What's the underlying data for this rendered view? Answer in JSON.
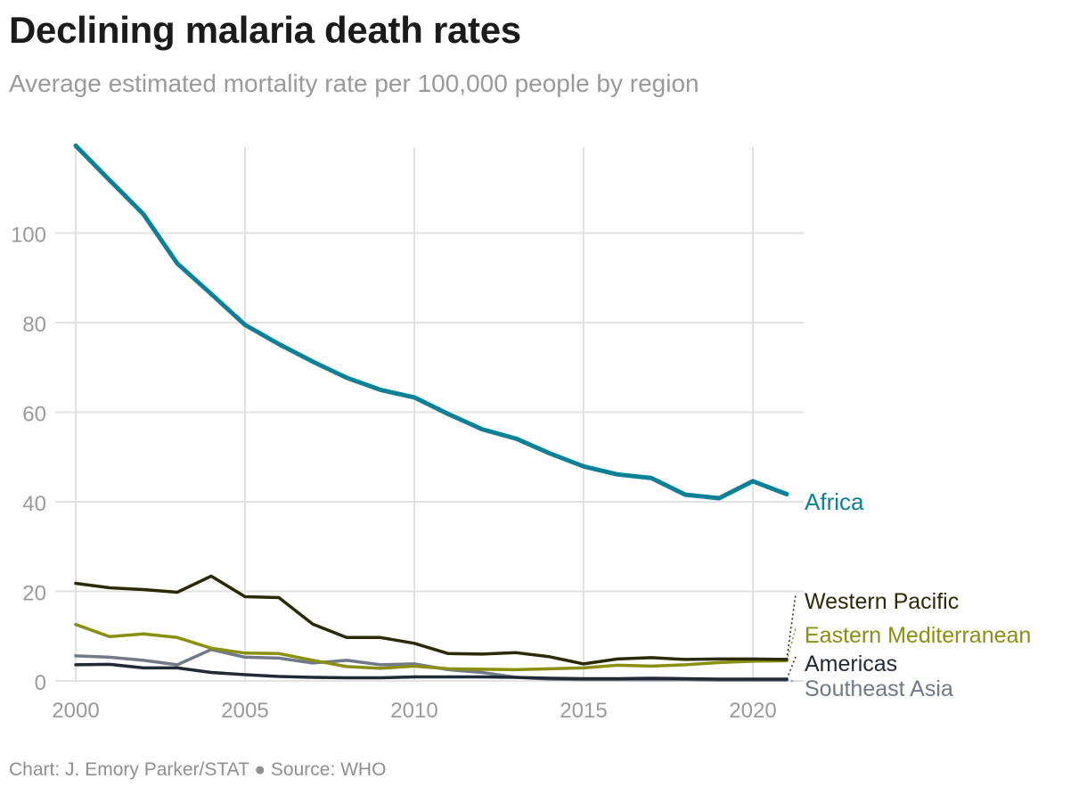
{
  "header": {
    "title": "Declining malaria death rates",
    "subtitle": "Average estimated mortality rate per 100,000 people by region"
  },
  "footer": {
    "credit": "Chart: J. Emory Parker/STAT ● Source: WHO"
  },
  "colors": {
    "africa": "#0a8197",
    "western_pacific": "#2a2a06",
    "eastern_mediterranean": "#8a8f10",
    "americas": "#1f2a36",
    "southeast_asia": "#6f7a86",
    "grid": "#e2e2e2",
    "axis_text": "#9a9a9a"
  },
  "chart_data": {
    "type": "line",
    "title": "Declining malaria death rates",
    "subtitle": "Average estimated mortality rate per 100,000 people by region",
    "xlabel": "",
    "ylabel": "",
    "xlim": [
      2000,
      2021
    ],
    "ylim": [
      0,
      120
    ],
    "x_ticks": [
      2000,
      2005,
      2010,
      2015,
      2020
    ],
    "y_ticks": [
      0,
      20,
      40,
      60,
      80,
      100
    ],
    "grid": true,
    "legend": "direct labels at line ends (right)",
    "x": [
      2000,
      2001,
      2002,
      2003,
      2004,
      2005,
      2006,
      2007,
      2008,
      2009,
      2010,
      2011,
      2012,
      2013,
      2014,
      2015,
      2016,
      2017,
      2018,
      2019,
      2020,
      2021
    ],
    "series": [
      {
        "name": "Africa",
        "color": "#0a8197",
        "values": [
          119.5,
          111.8,
          104.2,
          93.2,
          86.4,
          79.5,
          75.2,
          71.3,
          67.7,
          65.0,
          63.3,
          59.6,
          56.2,
          54.1,
          50.8,
          47.9,
          46.1,
          45.3,
          41.6,
          40.8,
          44.6,
          41.7
        ]
      },
      {
        "name": "Western Pacific",
        "color": "#2a2a06",
        "values": [
          21.8,
          20.8,
          20.4,
          19.8,
          23.4,
          18.8,
          18.6,
          12.7,
          9.7,
          9.7,
          8.4,
          6.1,
          6.0,
          6.3,
          5.4,
          3.8,
          4.9,
          5.2,
          4.8,
          4.9,
          4.9,
          4.8
        ]
      },
      {
        "name": "Eastern Mediterranean",
        "color": "#8a8f10",
        "values": [
          12.6,
          9.9,
          10.5,
          9.7,
          7.3,
          6.2,
          6.1,
          4.6,
          3.2,
          2.8,
          3.3,
          2.7,
          2.6,
          2.5,
          2.7,
          2.9,
          3.5,
          3.3,
          3.6,
          4.1,
          4.4,
          4.5
        ]
      },
      {
        "name": "Americas",
        "color": "#1f2a36",
        "values": [
          3.6,
          3.7,
          2.9,
          2.9,
          1.9,
          1.4,
          1.0,
          0.8,
          0.7,
          0.7,
          0.9,
          0.9,
          0.9,
          0.8,
          0.6,
          0.5,
          0.5,
          0.6,
          0.5,
          0.4,
          0.4,
          0.4
        ]
      },
      {
        "name": "Southeast Asia",
        "color": "#6f7a86",
        "values": [
          5.6,
          5.3,
          4.6,
          3.6,
          7.0,
          5.3,
          5.1,
          4.0,
          4.6,
          3.6,
          3.8,
          2.5,
          1.9,
          0.8,
          0.4,
          0.3,
          0.3,
          0.3,
          0.3,
          0.2,
          0.2,
          0.2
        ]
      }
    ]
  }
}
